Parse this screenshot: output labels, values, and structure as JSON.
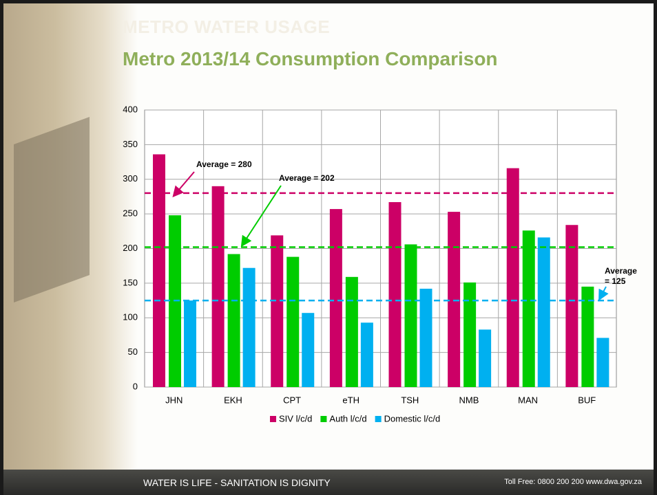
{
  "header": {
    "section": "METRO WATER USAGE"
  },
  "chart_data": {
    "type": "bar",
    "title": "Metro 2013/14 Consumption Comparison",
    "categories": [
      "JHN",
      "EKH",
      "CPT",
      "eTH",
      "TSH",
      "NMB",
      "MAN",
      "BUF"
    ],
    "series": [
      {
        "name": "SIV l/c/d",
        "color": "#cc0066",
        "values": [
          336,
          290,
          219,
          257,
          267,
          253,
          316,
          234
        ]
      },
      {
        "name": "Auth l/c/d",
        "color": "#00cc00",
        "values": [
          248,
          192,
          188,
          159,
          206,
          151,
          226,
          145
        ]
      },
      {
        "name": "Domestic l/c/d",
        "color": "#00b0f0",
        "values": [
          125,
          172,
          107,
          93,
          142,
          83,
          216,
          71
        ]
      }
    ],
    "averages": [
      {
        "label": "Average = 280",
        "value": 280,
        "color": "#cc0066"
      },
      {
        "label": "Average = 202",
        "value": 202,
        "color": "#00cc00"
      },
      {
        "label": "Average = 125",
        "value": 125,
        "color": "#00b0f0"
      }
    ],
    "ylim": [
      0,
      400
    ],
    "yticks": [
      0,
      50,
      100,
      150,
      200,
      250,
      300,
      350,
      400
    ],
    "grid": true,
    "legend": "bottom"
  },
  "footer": {
    "motto": "WATER IS LIFE - SANITATION IS DIGNITY",
    "contact": "Toll Free: 0800 200 200     www.dwa.gov.za"
  }
}
